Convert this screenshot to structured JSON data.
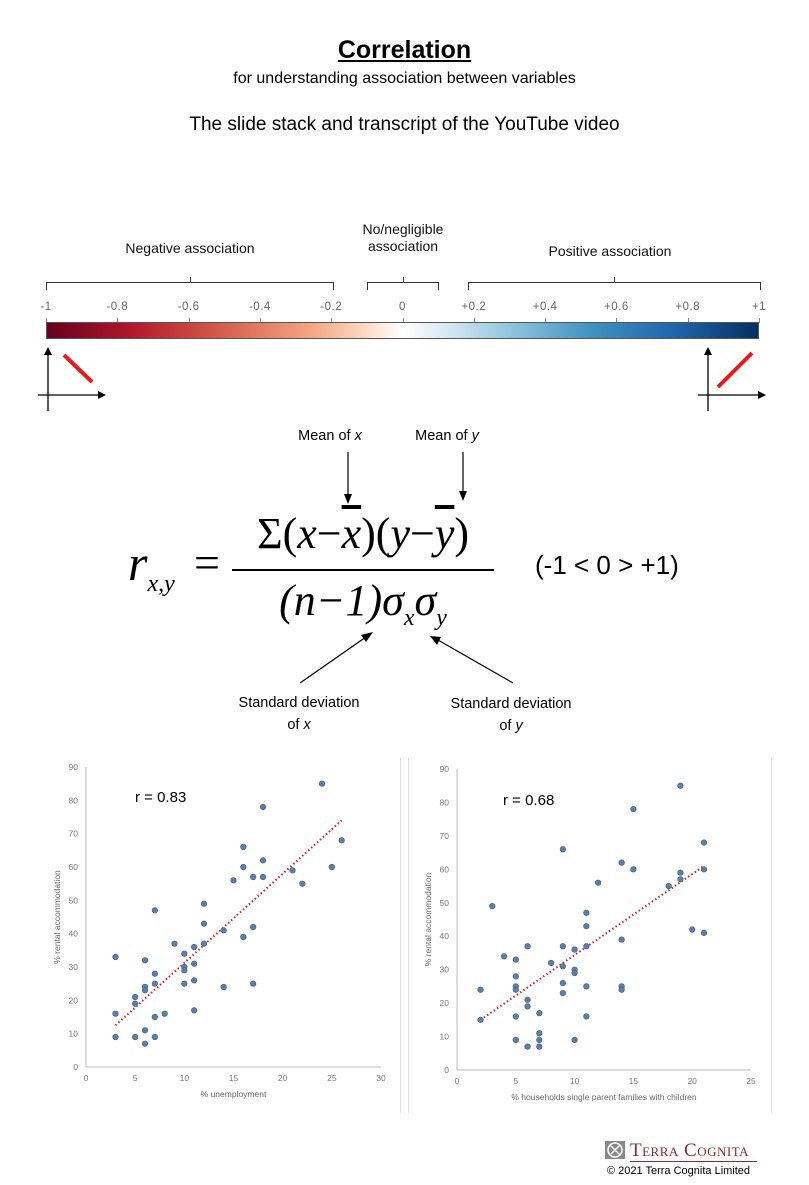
{
  "header": {
    "title": "Correlation",
    "subtitle": "for understanding association between variables",
    "description": "The slide stack and transcript of the YouTube video"
  },
  "scale": {
    "negative_label": "Negative association",
    "neutral_label_line1": "No/negligible",
    "neutral_label_line2": "association",
    "positive_label": "Positive association",
    "ticks": [
      "-1",
      "-0.8",
      "-0.6",
      "-0.4",
      "-0.2",
      "0",
      "+0.2",
      "+0.4",
      "+0.6",
      "+0.8",
      "+1"
    ],
    "colors": {
      "min": "#67001f",
      "mid": "#ffffff",
      "max": "#053061",
      "line_icon": "#e8191a"
    }
  },
  "formula": {
    "lhs": "r",
    "lhs_sub": "x,y",
    "equals": "=",
    "numerator": {
      "sigma": "Σ",
      "x": "x",
      "y": "y",
      "minus": "−"
    },
    "denominator": {
      "n_term": "(n−1)",
      "sigma": "σ",
      "sub_x": "x",
      "sub_y": "y"
    },
    "range": "(-1 < 0 > +1)",
    "annotations": {
      "mean_x": "Mean of ",
      "mean_x_var": "x",
      "mean_y": "Mean of ",
      "mean_y_var": "y",
      "sd_x_line1": "Standard deviation",
      "sd_x_line2": "of ",
      "sd_x_var": "x",
      "sd_y_line1": "Standard deviation",
      "sd_y_line2": "of ",
      "sd_y_var": "y"
    }
  },
  "chart_data": [
    {
      "type": "scatter",
      "annotation": "r = 0.83",
      "xlabel": "% unemployment",
      "ylabel": "% rental accommodation",
      "xlim": [
        0,
        30
      ],
      "ylim": [
        0,
        90
      ],
      "xticks": [
        "0",
        "5",
        "10",
        "15",
        "20",
        "25",
        "30"
      ],
      "yticks": [
        "0",
        "10",
        "20",
        "30",
        "40",
        "50",
        "60",
        "70",
        "80",
        "90"
      ],
      "grid": false,
      "point_color": "#5b7fa6",
      "trendline": {
        "style": "dotted",
        "color": "#d0202a",
        "from": [
          3,
          12.5
        ],
        "to": [
          26,
          74
        ]
      },
      "points": [
        [
          3,
          33
        ],
        [
          3,
          16
        ],
        [
          3,
          9
        ],
        [
          5,
          21
        ],
        [
          5,
          19
        ],
        [
          5,
          9
        ],
        [
          6,
          32
        ],
        [
          6,
          24
        ],
        [
          6,
          23
        ],
        [
          6,
          11
        ],
        [
          6,
          7
        ],
        [
          7,
          47
        ],
        [
          7,
          28
        ],
        [
          7,
          25
        ],
        [
          7,
          15
        ],
        [
          7,
          9
        ],
        [
          8,
          16
        ],
        [
          9,
          37
        ],
        [
          10,
          34
        ],
        [
          10,
          30
        ],
        [
          10,
          29
        ],
        [
          10,
          25
        ],
        [
          11,
          36
        ],
        [
          11,
          31
        ],
        [
          11,
          26
        ],
        [
          11,
          17
        ],
        [
          12,
          49
        ],
        [
          12,
          43
        ],
        [
          12,
          37
        ],
        [
          14,
          41
        ],
        [
          14,
          24
        ],
        [
          15,
          56
        ],
        [
          16,
          66
        ],
        [
          16,
          60
        ],
        [
          16,
          39
        ],
        [
          17,
          57
        ],
        [
          17,
          42
        ],
        [
          17,
          25
        ],
        [
          18,
          78
        ],
        [
          18,
          62
        ],
        [
          18,
          57
        ],
        [
          21,
          59
        ],
        [
          22,
          55
        ],
        [
          24,
          85
        ],
        [
          25,
          60
        ],
        [
          26,
          68
        ]
      ]
    },
    {
      "type": "scatter",
      "annotation": "r = 0.68",
      "xlabel": "% households single parent families with children",
      "ylabel": "% rental accommodation",
      "xlim": [
        0,
        25
      ],
      "ylim": [
        0,
        90
      ],
      "xticks": [
        "0",
        "5",
        "10",
        "15",
        "20",
        "25"
      ],
      "yticks": [
        "0",
        "10",
        "20",
        "30",
        "40",
        "50",
        "60",
        "70",
        "80",
        "90"
      ],
      "grid": false,
      "point_color": "#5b7fa6",
      "trendline": {
        "style": "dotted",
        "color": "#d0202a",
        "from": [
          2,
          15
        ],
        "to": [
          21,
          61
        ]
      },
      "points": [
        [
          2,
          24
        ],
        [
          2,
          15
        ],
        [
          3,
          49
        ],
        [
          4,
          34
        ],
        [
          5,
          33
        ],
        [
          5,
          28
        ],
        [
          5,
          25
        ],
        [
          5,
          24
        ],
        [
          5,
          16
        ],
        [
          5,
          9
        ],
        [
          6,
          37
        ],
        [
          6,
          21
        ],
        [
          6,
          19
        ],
        [
          6,
          7
        ],
        [
          7,
          17
        ],
        [
          7,
          11
        ],
        [
          7,
          9
        ],
        [
          7,
          7
        ],
        [
          8,
          32
        ],
        [
          9,
          66
        ],
        [
          9,
          37
        ],
        [
          9,
          31
        ],
        [
          9,
          26
        ],
        [
          9,
          23
        ],
        [
          10,
          36
        ],
        [
          10,
          30
        ],
        [
          10,
          29
        ],
        [
          10,
          9
        ],
        [
          11,
          47
        ],
        [
          11,
          43
        ],
        [
          11,
          37
        ],
        [
          11,
          25
        ],
        [
          11,
          16
        ],
        [
          12,
          56
        ],
        [
          14,
          62
        ],
        [
          14,
          39
        ],
        [
          14,
          25
        ],
        [
          14,
          24
        ],
        [
          15,
          78
        ],
        [
          15,
          60
        ],
        [
          18,
          55
        ],
        [
          19,
          85
        ],
        [
          19,
          59
        ],
        [
          19,
          57
        ],
        [
          20,
          42
        ],
        [
          21,
          68
        ],
        [
          21,
          60
        ],
        [
          21,
          41
        ]
      ]
    }
  ],
  "footer": {
    "brand": "Terra Cognita",
    "copyright": "© 2021 Terra Cognita Limited",
    "brand_color": "#8b2a2a"
  }
}
